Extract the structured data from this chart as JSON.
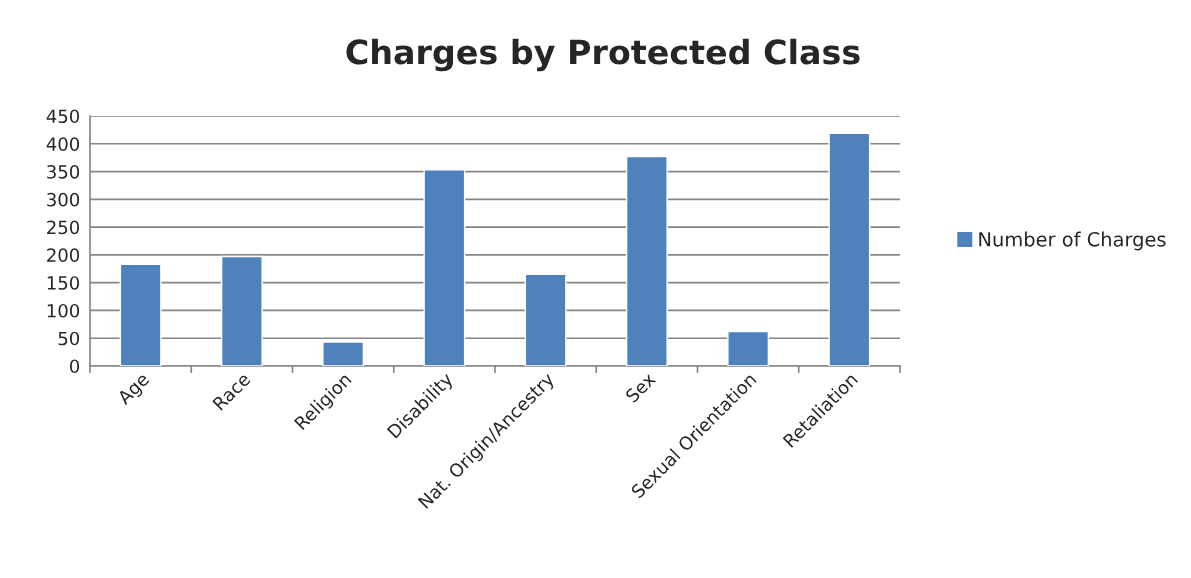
{
  "chart_data": {
    "type": "bar",
    "title": "Charges by Protected Class",
    "categories": [
      "Age",
      "Race",
      "Religion",
      "Disability",
      "Nat. Origin/Ancestry",
      "Sex",
      "Sexual Orientation",
      "Retaliation"
    ],
    "series": [
      {
        "name": "Number of Charges",
        "color": "#4f81bd",
        "values": [
          183,
          197,
          43,
          353,
          165,
          377,
          62,
          419
        ]
      }
    ],
    "ylim": [
      0,
      450
    ],
    "yticks": [
      0,
      50,
      100,
      150,
      200,
      250,
      300,
      350,
      400,
      450
    ],
    "grid": "y",
    "legend": "right"
  }
}
